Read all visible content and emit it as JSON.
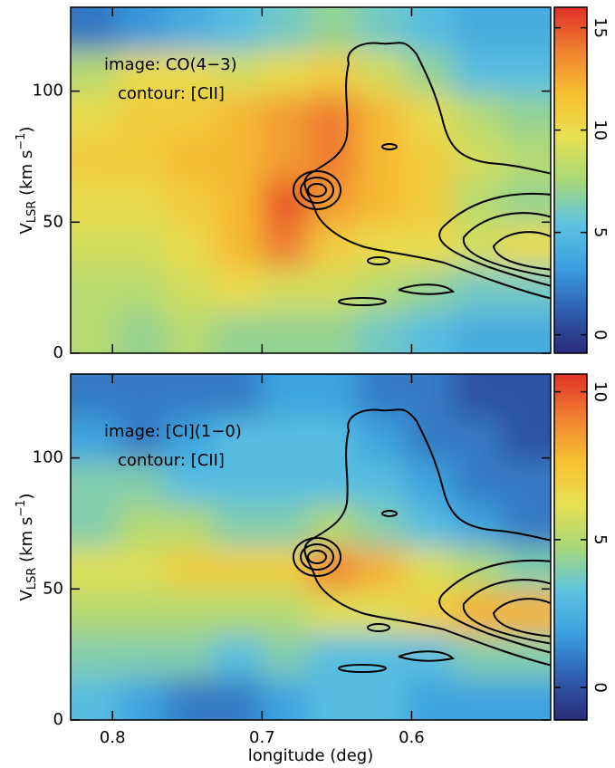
{
  "chart_data": [
    {
      "type": "heatmap",
      "annotations": [
        "image: CO(4−3)",
        "contour: [CII]"
      ],
      "ylabel": [
        "V",
        "LSR",
        " (km s",
        "−1",
        ")"
      ],
      "xlim": [
        0.828,
        0.507
      ],
      "xticks": [
        0.8,
        0.7,
        0.6
      ],
      "show_xtick_labels": false,
      "ylim": [
        0,
        132
      ],
      "yticks": [
        0,
        50,
        100
      ],
      "x": [
        0.812,
        0.78,
        0.748,
        0.716,
        0.684,
        0.652,
        0.62,
        0.588,
        0.556,
        0.524
      ],
      "y": [
        8,
        25,
        41,
        58,
        74,
        91,
        107,
        124
      ],
      "z": [
        [
          8,
          7,
          8,
          7,
          7,
          7,
          6,
          5,
          4,
          4
        ],
        [
          8,
          8,
          9,
          10,
          9,
          9,
          8,
          7,
          6,
          6
        ],
        [
          9,
          9,
          10,
          12,
          14,
          11,
          10,
          10,
          9,
          10
        ],
        [
          10,
          10,
          11,
          12,
          15,
          13,
          12,
          11,
          8,
          7
        ],
        [
          11,
          11,
          12,
          12,
          13,
          14,
          12,
          11,
          9,
          8
        ],
        [
          10,
          11,
          11,
          12,
          13,
          14,
          12,
          10,
          8,
          7
        ],
        [
          8,
          10,
          10,
          9,
          10,
          11,
          9,
          7,
          5,
          5
        ],
        [
          2,
          3,
          4,
          5,
          6,
          7,
          6,
          5,
          4,
          4
        ]
      ],
      "clim": [
        -0.9,
        16
      ],
      "cticks": [
        0,
        5,
        10,
        15
      ],
      "colormap": [
        "#2a2a7a",
        "#2f5fb0",
        "#3aa0e0",
        "#5ec4e0",
        "#a8d878",
        "#e8e050",
        "#f7c030",
        "#f08030",
        "#e03028"
      ]
    },
    {
      "type": "heatmap",
      "annotations": [
        "image: [CI](1−0)",
        "contour: [CII]"
      ],
      "ylabel": [
        "V",
        "LSR",
        " (km s",
        "−1",
        ")"
      ],
      "xlabel": "longitude (deg)",
      "xlim": [
        0.828,
        0.507
      ],
      "xticks": [
        0.8,
        0.7,
        0.6
      ],
      "show_xtick_labels": true,
      "ylim": [
        0,
        132
      ],
      "yticks": [
        0,
        50,
        100
      ],
      "x": [
        0.812,
        0.78,
        0.748,
        0.716,
        0.684,
        0.652,
        0.62,
        0.588,
        0.556,
        0.524
      ],
      "y": [
        8,
        25,
        41,
        58,
        74,
        91,
        107,
        124
      ],
      "z": [
        [
          3,
          2,
          1,
          1,
          2,
          3,
          3,
          2,
          2,
          2
        ],
        [
          4,
          4,
          4,
          3,
          4,
          3,
          3,
          3,
          4,
          4
        ],
        [
          5,
          5,
          5,
          5,
          5,
          6,
          6,
          7,
          8,
          8
        ],
        [
          6,
          6,
          7,
          7,
          7,
          9,
          8,
          6,
          5,
          4
        ],
        [
          4,
          5,
          5,
          4,
          4,
          5,
          4,
          3,
          2,
          1
        ],
        [
          4,
          4,
          3,
          3,
          3,
          3,
          3,
          2,
          1,
          1
        ],
        [
          2,
          1,
          2,
          3,
          3,
          3,
          2,
          1,
          1,
          0
        ],
        [
          1,
          1,
          1,
          1,
          2,
          2,
          1,
          1,
          0,
          0
        ]
      ],
      "clim": [
        -1.1,
        10.6
      ],
      "cticks": [
        0,
        5,
        10
      ],
      "colormap": [
        "#2a2a7a",
        "#2f5fb0",
        "#3aa0e0",
        "#5ec4e0",
        "#a8d878",
        "#e8e050",
        "#f7c030",
        "#f08030",
        "#e03028"
      ]
    }
  ]
}
